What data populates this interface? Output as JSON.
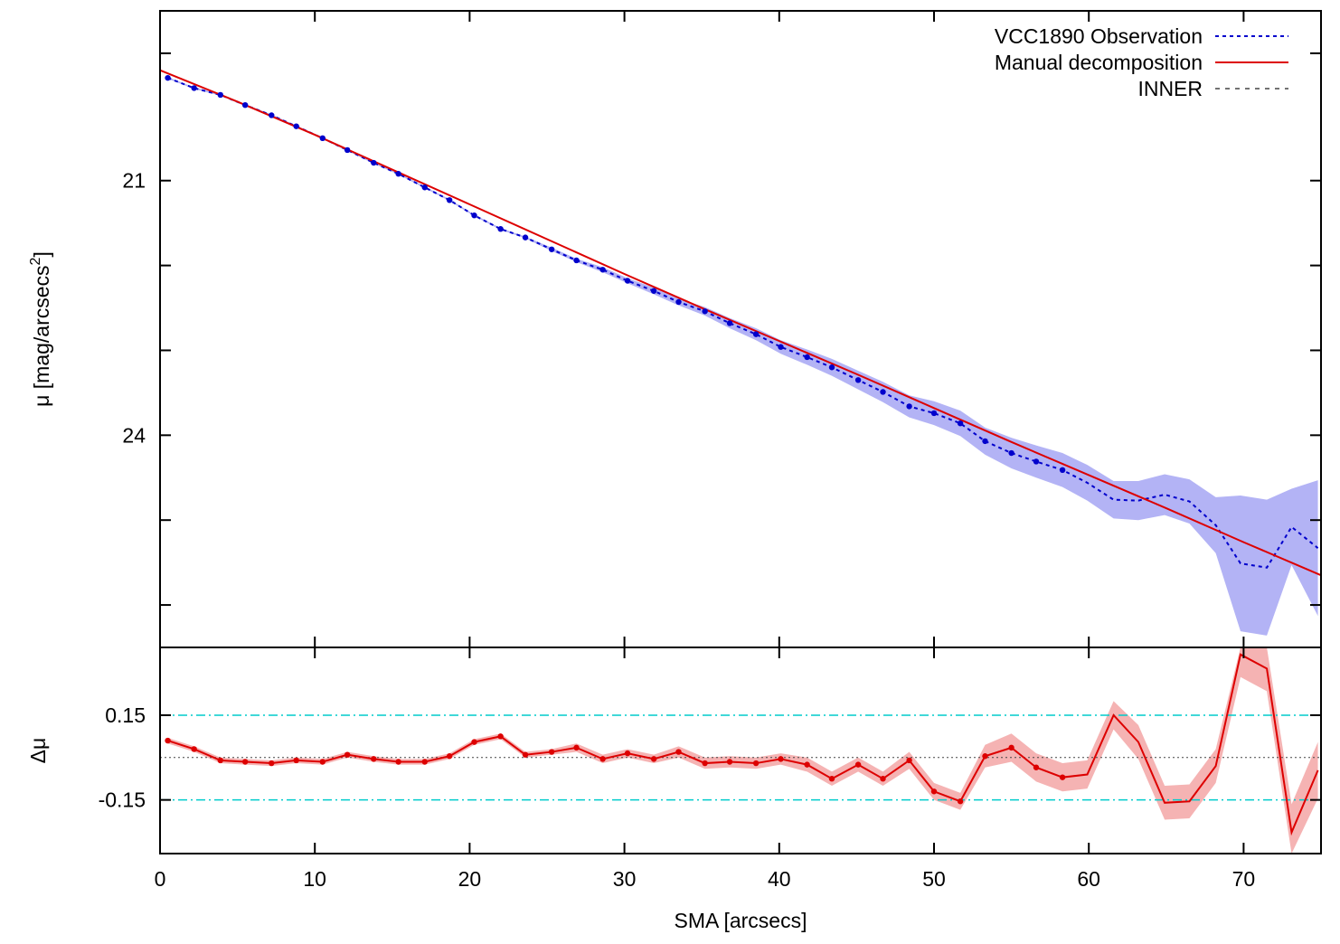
{
  "chart_data": [
    {
      "type": "line",
      "panel": "profile",
      "ylabel": "μ [mag/arcsecs²]",
      "ylabel_main": "μ [mag/arcsecs",
      "ylabel_sup": "2",
      "ylabel_close": "]",
      "xlim": [
        0,
        75
      ],
      "ylim": [
        26.5,
        19.0
      ],
      "y_inverted": true,
      "x_ticks": [
        0,
        10,
        20,
        30,
        40,
        50,
        60,
        70
      ],
      "y_ticks": [
        19.5,
        21.0,
        22.0,
        23.0,
        24.0,
        25.0,
        26.0
      ],
      "y_tick_labels": [
        {
          "value": 21,
          "label": "21"
        },
        {
          "value": 24,
          "label": "24"
        }
      ],
      "legend": [
        {
          "label": "VCC1890 Observation",
          "style": "dotted",
          "color": "#0000cc"
        },
        {
          "label": "Manual decomposition",
          "style": "solid",
          "color": "#dd0000"
        },
        {
          "label": "INNER",
          "style": "dashed",
          "color": "#444444"
        }
      ],
      "legend_position": "top-right",
      "grid": false,
      "series": [
        {
          "name": "VCC1890 Observation",
          "color": "#0000cc",
          "fill_color": "#b3b3f5",
          "x": [
            0.5,
            2.2,
            3.9,
            5.5,
            7.2,
            8.8,
            10.5,
            12.1,
            13.8,
            15.4,
            17.1,
            18.7,
            20.3,
            22.0,
            23.6,
            25.3,
            26.9,
            28.6,
            30.2,
            31.9,
            33.5,
            35.2,
            36.8,
            38.5,
            40.1,
            41.8,
            43.4,
            45.1,
            46.7,
            48.4,
            50.0,
            51.7,
            53.3,
            55.0,
            56.6,
            58.3,
            59.9,
            61.6,
            63.2,
            64.9,
            66.5,
            68.2,
            69.8,
            71.5,
            73.1,
            74.8
          ],
          "y": [
            19.79,
            19.91,
            19.99,
            20.11,
            20.23,
            20.36,
            20.5,
            20.64,
            20.79,
            20.92,
            21.08,
            21.23,
            21.41,
            21.57,
            21.67,
            21.81,
            21.94,
            22.05,
            22.18,
            22.3,
            22.43,
            22.54,
            22.68,
            22.81,
            22.96,
            23.08,
            23.2,
            23.35,
            23.49,
            23.66,
            23.74,
            23.86,
            24.07,
            24.21,
            24.31,
            24.41,
            24.56,
            24.76,
            24.77,
            24.7,
            24.78,
            25.06,
            25.51,
            25.56,
            25.08,
            25.33
          ],
          "err": [
            0.01,
            0.01,
            0.01,
            0.01,
            0.01,
            0.01,
            0.01,
            0.01,
            0.01,
            0.01,
            0.01,
            0.01,
            0.01,
            0.01,
            0.01,
            0.02,
            0.02,
            0.03,
            0.03,
            0.04,
            0.04,
            0.05,
            0.06,
            0.07,
            0.08,
            0.09,
            0.1,
            0.11,
            0.12,
            0.13,
            0.14,
            0.15,
            0.16,
            0.18,
            0.19,
            0.2,
            0.21,
            0.22,
            0.23,
            0.24,
            0.26,
            0.33,
            0.8,
            0.8,
            0.45,
            0.8
          ]
        },
        {
          "name": "Manual decomposition",
          "color": "#dd0000",
          "x": [
            0,
            5,
            10,
            15,
            20,
            25,
            30,
            35,
            40,
            45,
            50,
            55,
            60,
            65,
            70,
            75
          ],
          "y": [
            19.7,
            20.07,
            20.46,
            20.87,
            21.28,
            21.69,
            22.1,
            22.5,
            22.89,
            23.28,
            23.68,
            24.08,
            24.47,
            24.86,
            25.26,
            25.65
          ]
        }
      ]
    },
    {
      "type": "line",
      "panel": "residual",
      "xlabel": "SMA [arcsecs]",
      "ylabel": "Δμ",
      "xlim": [
        0,
        75
      ],
      "ylim": [
        -0.34,
        0.39
      ],
      "y_tick_labels": [
        {
          "value": 0.15,
          "label": "0.15"
        },
        {
          "value": -0.15,
          "label": "-0.15"
        }
      ],
      "x_tick_labels": [
        {
          "value": 0,
          "label": "0"
        },
        {
          "value": 10,
          "label": "10"
        },
        {
          "value": 20,
          "label": "20"
        },
        {
          "value": 30,
          "label": "30"
        },
        {
          "value": 40,
          "label": "40"
        },
        {
          "value": 50,
          "label": "50"
        },
        {
          "value": 60,
          "label": "60"
        },
        {
          "value": 70,
          "label": "70"
        }
      ],
      "reference_lines": [
        {
          "y": 0.15,
          "color": "#00cccc",
          "style": "dash-dot"
        },
        {
          "y": -0.15,
          "color": "#00cccc",
          "style": "dash-dot"
        },
        {
          "y": 0.0,
          "color": "#444444",
          "style": "dotted"
        }
      ],
      "series": [
        {
          "name": "residual",
          "color": "#dd0000",
          "fill_color": "#f5b3b3",
          "x": [
            0.5,
            2.2,
            3.9,
            5.5,
            7.2,
            8.8,
            10.5,
            12.1,
            13.8,
            15.4,
            17.1,
            18.7,
            20.3,
            22.0,
            23.6,
            25.3,
            26.9,
            28.6,
            30.2,
            31.9,
            33.5,
            35.2,
            36.8,
            38.5,
            40.1,
            41.8,
            43.4,
            45.1,
            46.7,
            48.4,
            50.0,
            51.7,
            53.3,
            55.0,
            56.6,
            58.3,
            59.9,
            61.6,
            63.2,
            64.9,
            66.5,
            68.2,
            69.8,
            71.5,
            73.1,
            74.8
          ],
          "y": [
            0.06,
            0.03,
            -0.01,
            -0.015,
            -0.02,
            -0.01,
            -0.015,
            0.01,
            -0.005,
            -0.015,
            -0.015,
            0.005,
            0.055,
            0.075,
            0.01,
            0.02,
            0.035,
            -0.005,
            0.015,
            -0.005,
            0.02,
            -0.02,
            -0.015,
            -0.02,
            -0.005,
            -0.025,
            -0.075,
            -0.025,
            -0.075,
            -0.01,
            -0.12,
            -0.155,
            0.005,
            0.035,
            -0.035,
            -0.07,
            -0.06,
            0.15,
            0.055,
            -0.16,
            -0.155,
            -0.03,
            0.365,
            0.315,
            -0.265,
            -0.045
          ],
          "err": [
            0.01,
            0.01,
            0.01,
            0.01,
            0.01,
            0.01,
            0.01,
            0.01,
            0.01,
            0.01,
            0.01,
            0.01,
            0.01,
            0.01,
            0.01,
            0.01,
            0.015,
            0.015,
            0.015,
            0.015,
            0.02,
            0.02,
            0.02,
            0.02,
            0.02,
            0.025,
            0.025,
            0.025,
            0.025,
            0.03,
            0.03,
            0.03,
            0.04,
            0.05,
            0.05,
            0.05,
            0.05,
            0.05,
            0.06,
            0.06,
            0.06,
            0.06,
            0.08,
            0.08,
            0.1,
            0.1
          ]
        }
      ]
    }
  ]
}
